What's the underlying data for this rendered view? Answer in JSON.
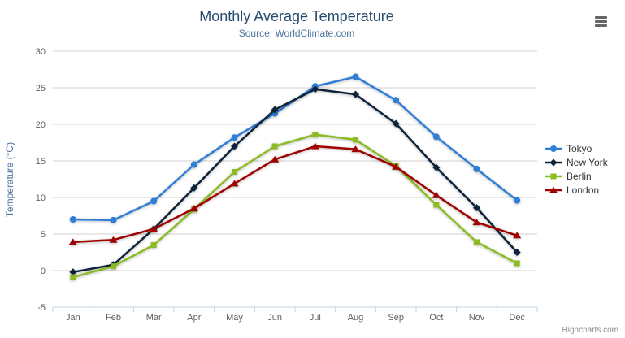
{
  "credits": "Highcharts.com",
  "chart_data": {
    "type": "line",
    "title": "Monthly Average Temperature",
    "subtitle": "Source: WorldClimate.com",
    "xlabel": "",
    "ylabel": "Temperature (°C)",
    "categories": [
      "Jan",
      "Feb",
      "Mar",
      "Apr",
      "May",
      "Jun",
      "Jul",
      "Aug",
      "Sep",
      "Oct",
      "Nov",
      "Dec"
    ],
    "ylim": [
      -5,
      30
    ],
    "ytick_interval": 5,
    "grid": true,
    "legend_position": "right",
    "colors": {
      "grid": "#d0d0d0",
      "axis_line": "#c0d0e0",
      "axis_label": "#606060",
      "title": "#274b6d",
      "subtitle": "#4d759e"
    },
    "series": [
      {
        "name": "Tokyo",
        "color": "#2f7ed8",
        "marker": "circle",
        "values": [
          7.0,
          6.9,
          9.5,
          14.5,
          18.2,
          21.5,
          25.2,
          26.5,
          23.3,
          18.3,
          13.9,
          9.6
        ]
      },
      {
        "name": "New York",
        "color": "#0d233a",
        "marker": "diamond",
        "values": [
          -0.2,
          0.8,
          5.7,
          11.3,
          17.0,
          22.0,
          24.8,
          24.1,
          20.1,
          14.1,
          8.6,
          2.5
        ]
      },
      {
        "name": "Berlin",
        "color": "#8bbc21",
        "marker": "square",
        "values": [
          -0.9,
          0.6,
          3.5,
          8.4,
          13.5,
          17.0,
          18.6,
          17.9,
          14.3,
          9.0,
          3.9,
          1.0
        ]
      },
      {
        "name": "London",
        "color": "#a00000",
        "marker": "triangle",
        "values": [
          3.9,
          4.2,
          5.7,
          8.5,
          11.9,
          15.2,
          17.0,
          16.6,
          14.2,
          10.3,
          6.6,
          4.8
        ]
      }
    ]
  }
}
